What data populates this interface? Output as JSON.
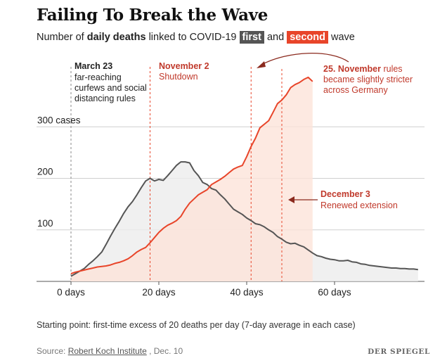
{
  "header": {
    "title": "Failing To Break the Wave",
    "subtitle_pre": "Number of ",
    "subtitle_bold": "daily deaths",
    "subtitle_mid": " linked to COVID-19 ",
    "badge_first": "first",
    "subtitle_and": " and ",
    "badge_second": "second",
    "subtitle_post": " wave"
  },
  "footer": {
    "note": "Starting point: first-time excess of 20 deaths per day (7-day average in each case)",
    "source_label": "Source: ",
    "source_link": "Robert Koch Institute",
    "source_date": " , Dec. 10",
    "logo": "DER SPIEGEL"
  },
  "colors": {
    "first": "#555555",
    "first_fill": "#ececec",
    "second": "#e8452a",
    "second_fill": "#fde3da",
    "annotation_second": "#c0392b",
    "grid": "#cfcfcf"
  },
  "chart_data": {
    "type": "area",
    "x_ticks": [
      0,
      20,
      40,
      60
    ],
    "x_tick_labels": [
      "0 days",
      "20 days",
      "40 days",
      "60 days"
    ],
    "y_ticks": [
      100,
      200,
      300
    ],
    "y_tick_labels": [
      "100",
      "200",
      "300 cases"
    ],
    "xlim": [
      -0.5,
      79.5
    ],
    "ylim": [
      0,
      400
    ],
    "grid": true,
    "series": [
      {
        "name": "first",
        "x": [
          0,
          1,
          2,
          3,
          4,
          5,
          6,
          7,
          8,
          9,
          10,
          11,
          12,
          13,
          14,
          15,
          16,
          17,
          18,
          19,
          20,
          21,
          22,
          23,
          24,
          25,
          26,
          27,
          28,
          29,
          30,
          31,
          32,
          33,
          34,
          35,
          36,
          37,
          38,
          39,
          40,
          41,
          42,
          43,
          44,
          45,
          46,
          47,
          48,
          49,
          50,
          51,
          52,
          53,
          54,
          55,
          56,
          57,
          58,
          59,
          60,
          61,
          62,
          63,
          64,
          65,
          66,
          67,
          68,
          69,
          70,
          71,
          72,
          73,
          74,
          75,
          76,
          77,
          78,
          79
        ],
        "values": [
          10,
          15,
          20,
          25,
          33,
          40,
          48,
          57,
          72,
          88,
          103,
          117,
          132,
          145,
          155,
          168,
          182,
          195,
          200,
          195,
          198,
          196,
          205,
          215,
          225,
          232,
          232,
          230,
          215,
          205,
          192,
          188,
          180,
          177,
          168,
          160,
          150,
          140,
          135,
          130,
          123,
          118,
          112,
          110,
          106,
          100,
          95,
          87,
          82,
          76,
          73,
          74,
          70,
          67,
          61,
          55,
          50,
          48,
          45,
          43,
          42,
          40,
          40,
          41,
          38,
          37,
          34,
          33,
          31,
          30,
          29,
          28,
          27,
          26,
          26,
          25,
          25,
          24,
          24,
          23
        ]
      },
      {
        "name": "second",
        "x": [
          0,
          1,
          2,
          3,
          4,
          5,
          6,
          7,
          8,
          9,
          10,
          11,
          12,
          13,
          14,
          15,
          16,
          17,
          18,
          19,
          20,
          21,
          22,
          23,
          24,
          25,
          26,
          27,
          28,
          29,
          30,
          31,
          32,
          33,
          34,
          35,
          36,
          37,
          38,
          39,
          40,
          41,
          42,
          43,
          44,
          45,
          46,
          47,
          48,
          49,
          50,
          51,
          52,
          53,
          54,
          55
        ],
        "values": [
          15,
          18,
          20,
          22,
          24,
          26,
          28,
          29,
          30,
          32,
          35,
          37,
          40,
          44,
          50,
          57,
          62,
          66,
          75,
          85,
          95,
          103,
          109,
          113,
          118,
          126,
          140,
          152,
          160,
          168,
          173,
          178,
          188,
          193,
          198,
          204,
          211,
          218,
          222,
          225,
          242,
          262,
          278,
          298,
          305,
          312,
          328,
          345,
          352,
          362,
          376,
          382,
          386,
          392,
          396,
          388
        ]
      }
    ],
    "annotations": [
      {
        "x": 0,
        "date_label": "March 23",
        "text_lines": [
          "far-reaching",
          "curfews and social",
          "distancing rules"
        ],
        "color": "#222222"
      },
      {
        "x": 18,
        "date_label": "November 2",
        "text_lines": [
          "Shutdown"
        ],
        "color": "#c0392b"
      },
      {
        "x": 41,
        "date_label": "25. November",
        "date_suffix": " rules",
        "text_lines": [
          "became slightly stricter",
          "across Germany"
        ],
        "color": "#c0392b"
      },
      {
        "x": 48,
        "date_label": "December 3",
        "text_lines": [
          "Renewed extension"
        ],
        "color": "#c0392b"
      }
    ]
  }
}
